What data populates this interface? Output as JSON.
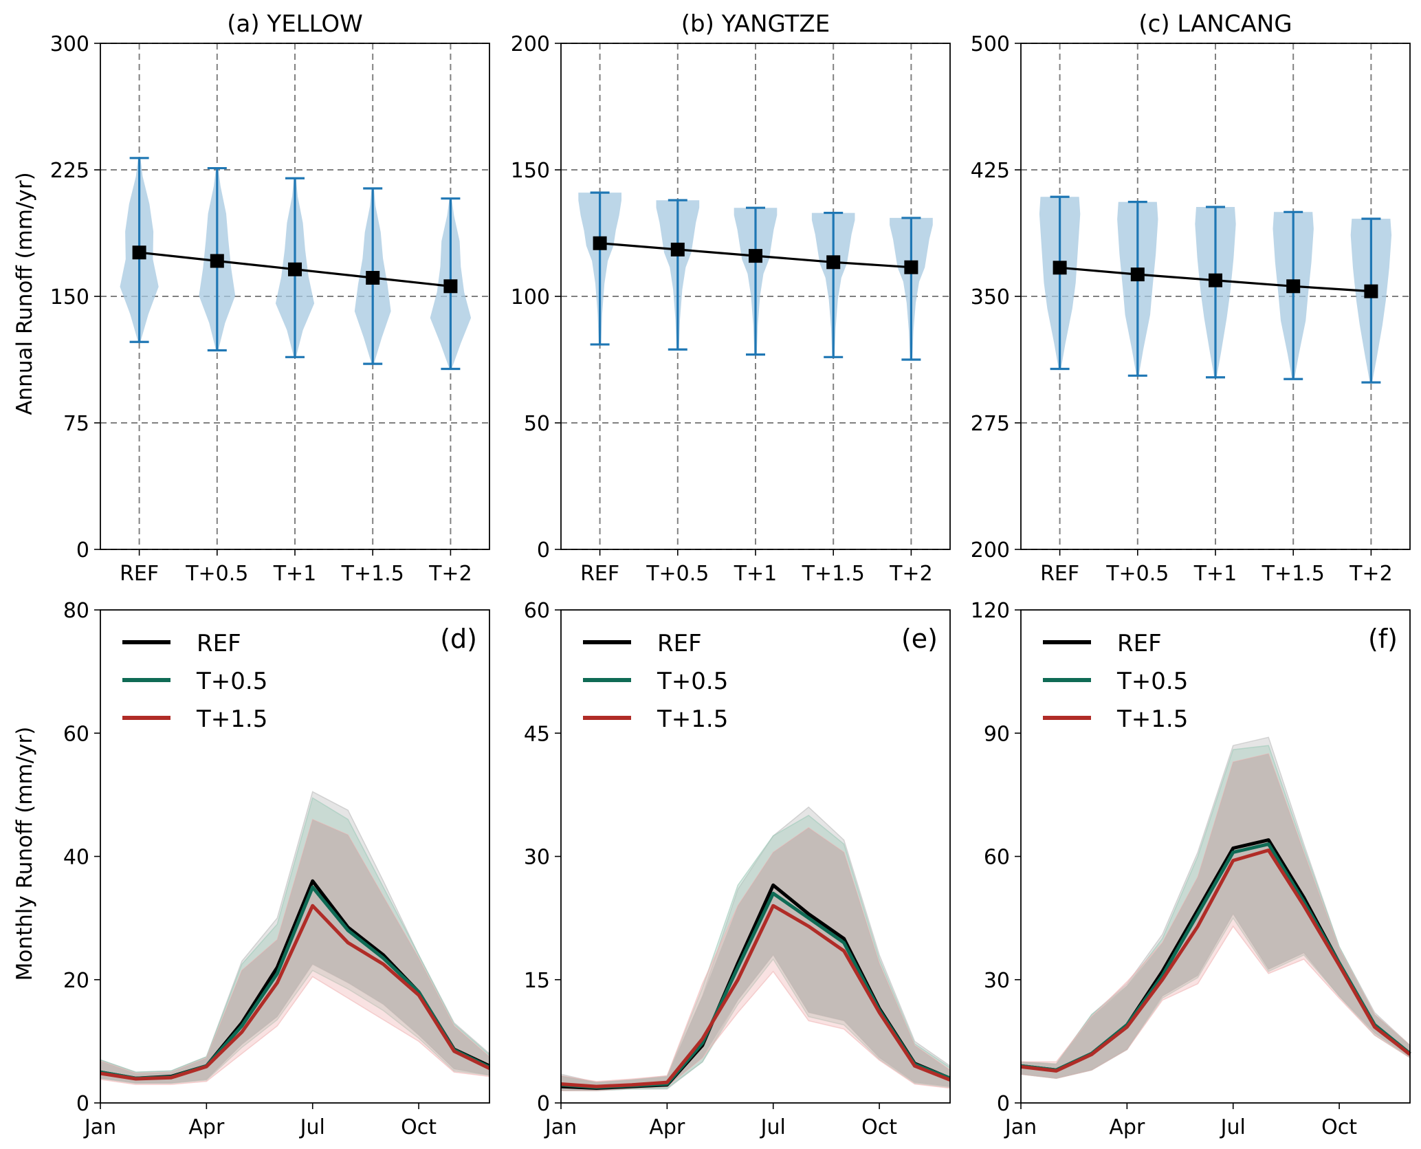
{
  "colors": {
    "violin_fill": "#a6c8e0",
    "violin_line": "#1f77b4",
    "mean_line": "#000000",
    "ref": "#000000",
    "t05": "#0f6b55",
    "t15": "#b02c27",
    "band_ref": "#bdbdbd",
    "band_t05": "#9fcab9",
    "band_t15": "#f0b6b6",
    "band_mix": "#b5aeab",
    "grid": "#808080"
  },
  "chart_data": [
    {
      "type": "violin",
      "title": "(a) YELLOW",
      "ylabel": "Annual Runoff (mm/yr)",
      "ylim": [
        0,
        300
      ],
      "yticks": [
        "0",
        "75",
        "150",
        "225",
        "300"
      ],
      "categories": [
        "REF",
        "T+0.5",
        "T+1",
        "T+1.5",
        "T+2"
      ],
      "means": [
        176,
        171,
        166,
        161,
        156
      ],
      "mins": [
        123,
        118,
        114,
        110,
        107
      ],
      "maxs": [
        232,
        226,
        220,
        214,
        208
      ],
      "widths": [
        [
          [
            0,
            0.05
          ],
          [
            0.15,
            0.4
          ],
          [
            0.3,
            0.85
          ],
          [
            0.45,
            0.6
          ],
          [
            0.6,
            0.62
          ],
          [
            0.75,
            0.45
          ],
          [
            0.9,
            0.15
          ],
          [
            1,
            0.05
          ]
        ],
        [
          [
            0,
            0.05
          ],
          [
            0.15,
            0.35
          ],
          [
            0.3,
            0.8
          ],
          [
            0.45,
            0.62
          ],
          [
            0.6,
            0.5
          ],
          [
            0.75,
            0.4
          ],
          [
            0.9,
            0.15
          ],
          [
            1,
            0.05
          ]
        ],
        [
          [
            0,
            0.05
          ],
          [
            0.15,
            0.35
          ],
          [
            0.3,
            0.85
          ],
          [
            0.45,
            0.6
          ],
          [
            0.6,
            0.45
          ],
          [
            0.75,
            0.35
          ],
          [
            0.9,
            0.12
          ],
          [
            1,
            0.05
          ]
        ],
        [
          [
            0,
            0.05
          ],
          [
            0.15,
            0.4
          ],
          [
            0.3,
            0.8
          ],
          [
            0.45,
            0.65
          ],
          [
            0.6,
            0.45
          ],
          [
            0.75,
            0.35
          ],
          [
            0.9,
            0.12
          ],
          [
            1,
            0.05
          ]
        ],
        [
          [
            0,
            0.05
          ],
          [
            0.15,
            0.45
          ],
          [
            0.3,
            0.9
          ],
          [
            0.45,
            0.6
          ],
          [
            0.6,
            0.45
          ],
          [
            0.75,
            0.4
          ],
          [
            0.9,
            0.15
          ],
          [
            1,
            0.05
          ]
        ]
      ]
    },
    {
      "type": "violin",
      "title": "(b) YANGTZE",
      "ylabel": "",
      "ylim": [
        0,
        200
      ],
      "yticks": [
        "0",
        "50",
        "100",
        "150",
        "200"
      ],
      "categories": [
        "REF",
        "T+0.5",
        "T+1",
        "T+1.5",
        "T+2"
      ],
      "means": [
        121,
        118.5,
        116,
        113.5,
        111.5
      ],
      "mins": [
        81,
        79,
        77,
        76,
        75
      ],
      "maxs": [
        141,
        138,
        135,
        133,
        131
      ],
      "widths": [
        [
          [
            0,
            0.05
          ],
          [
            0.2,
            0.1
          ],
          [
            0.4,
            0.2
          ],
          [
            0.55,
            0.35
          ],
          [
            0.65,
            0.6
          ],
          [
            0.75,
            0.7
          ],
          [
            0.85,
            0.85
          ],
          [
            0.95,
            0.95
          ],
          [
            1,
            0.95
          ]
        ],
        [
          [
            0,
            0.05
          ],
          [
            0.2,
            0.1
          ],
          [
            0.4,
            0.2
          ],
          [
            0.55,
            0.35
          ],
          [
            0.65,
            0.6
          ],
          [
            0.75,
            0.7
          ],
          [
            0.85,
            0.8
          ],
          [
            0.95,
            0.95
          ],
          [
            1,
            0.95
          ]
        ],
        [
          [
            0,
            0.05
          ],
          [
            0.2,
            0.1
          ],
          [
            0.4,
            0.2
          ],
          [
            0.55,
            0.35
          ],
          [
            0.65,
            0.6
          ],
          [
            0.75,
            0.7
          ],
          [
            0.85,
            0.8
          ],
          [
            0.95,
            0.95
          ],
          [
            1,
            0.95
          ]
        ],
        [
          [
            0,
            0.05
          ],
          [
            0.2,
            0.1
          ],
          [
            0.4,
            0.2
          ],
          [
            0.55,
            0.35
          ],
          [
            0.65,
            0.6
          ],
          [
            0.75,
            0.7
          ],
          [
            0.85,
            0.8
          ],
          [
            0.95,
            0.95
          ],
          [
            1,
            0.95
          ]
        ],
        [
          [
            0,
            0.05
          ],
          [
            0.2,
            0.1
          ],
          [
            0.4,
            0.2
          ],
          [
            0.55,
            0.35
          ],
          [
            0.65,
            0.6
          ],
          [
            0.75,
            0.7
          ],
          [
            0.85,
            0.8
          ],
          [
            0.95,
            0.95
          ],
          [
            1,
            0.95
          ]
        ]
      ]
    },
    {
      "type": "violin",
      "title": "(c) LANCANG",
      "ylabel": "",
      "ylim": [
        200,
        500
      ],
      "yticks": [
        "200",
        "275",
        "350",
        "425",
        "500"
      ],
      "categories": [
        "REF",
        "T+0.5",
        "T+1",
        "T+1.5",
        "T+2"
      ],
      "means": [
        367,
        363,
        359.5,
        356,
        353
      ],
      "mins": [
        307,
        303,
        302,
        301,
        299
      ],
      "maxs": [
        409,
        406,
        403,
        400,
        396
      ],
      "widths": [
        [
          [
            0,
            0.05
          ],
          [
            0.15,
            0.25
          ],
          [
            0.35,
            0.55
          ],
          [
            0.5,
            0.7
          ],
          [
            0.7,
            0.8
          ],
          [
            0.9,
            0.9
          ],
          [
            1,
            0.85
          ]
        ],
        [
          [
            0,
            0.05
          ],
          [
            0.15,
            0.25
          ],
          [
            0.35,
            0.55
          ],
          [
            0.5,
            0.65
          ],
          [
            0.7,
            0.8
          ],
          [
            0.9,
            0.9
          ],
          [
            1,
            0.85
          ]
        ],
        [
          [
            0,
            0.05
          ],
          [
            0.15,
            0.25
          ],
          [
            0.35,
            0.5
          ],
          [
            0.5,
            0.65
          ],
          [
            0.7,
            0.8
          ],
          [
            0.9,
            0.9
          ],
          [
            1,
            0.85
          ]
        ],
        [
          [
            0,
            0.05
          ],
          [
            0.15,
            0.25
          ],
          [
            0.35,
            0.55
          ],
          [
            0.5,
            0.65
          ],
          [
            0.7,
            0.8
          ],
          [
            0.9,
            0.9
          ],
          [
            1,
            0.85
          ]
        ],
        [
          [
            0,
            0.05
          ],
          [
            0.15,
            0.25
          ],
          [
            0.35,
            0.5
          ],
          [
            0.5,
            0.65
          ],
          [
            0.7,
            0.8
          ],
          [
            0.9,
            0.9
          ],
          [
            1,
            0.85
          ]
        ]
      ]
    },
    {
      "type": "line",
      "panel_label": "(d)",
      "ylabel": "Monthly Runoff (mm/yr)",
      "ylim": [
        0,
        80
      ],
      "yticks": [
        "0",
        "20",
        "40",
        "60",
        "80"
      ],
      "xlim": [
        1,
        12
      ],
      "xticks": [
        {
          "x": 1,
          "label": "Jan"
        },
        {
          "x": 4,
          "label": "Apr"
        },
        {
          "x": 7,
          "label": "Jul"
        },
        {
          "x": 10,
          "label": "Oct"
        }
      ],
      "legend": [
        "REF",
        "T+0.5",
        "T+1.5"
      ],
      "series": [
        {
          "name": "REF",
          "key": "ref",
          "values": [
            5,
            4,
            4.3,
            6,
            13,
            22,
            36,
            28.5,
            24,
            18,
            8.7,
            6
          ],
          "lower": [
            4,
            3.2,
            3.2,
            3.8,
            9.5,
            14,
            22.5,
            19.5,
            16,
            11,
            5.5,
            4.5
          ],
          "upper": [
            7,
            5,
            5.2,
            7.5,
            23,
            30,
            50.5,
            47.5,
            36,
            24,
            13,
            8
          ]
        },
        {
          "name": "T+0.5",
          "key": "t05",
          "values": [
            5,
            4,
            4.2,
            6,
            12.5,
            21,
            35,
            28,
            23.5,
            18,
            8.6,
            5.8
          ],
          "lower": [
            4,
            3.2,
            3.2,
            3.7,
            9,
            13.5,
            21.5,
            18.5,
            15,
            10.5,
            5.2,
            4.5
          ],
          "upper": [
            7,
            5,
            5.2,
            7.5,
            22.5,
            29,
            49.5,
            46,
            35,
            24,
            12.8,
            7.8
          ]
        },
        {
          "name": "T+1.5",
          "key": "t15",
          "values": [
            4.8,
            3.9,
            4.1,
            5.9,
            11.5,
            19.5,
            32,
            26,
            22.5,
            17.5,
            8.4,
            5.6
          ],
          "lower": [
            3.8,
            3,
            3,
            3.5,
            8,
            12.5,
            20.5,
            17,
            13.5,
            10,
            5,
            4.3
          ],
          "upper": [
            6.8,
            4.8,
            5,
            7.3,
            21.5,
            26.5,
            46,
            43.5,
            33.5,
            23.5,
            12.5,
            7.5
          ]
        }
      ]
    },
    {
      "type": "line",
      "panel_label": "(e)",
      "ylabel": "",
      "ylim": [
        0,
        60
      ],
      "yticks": [
        "0",
        "15",
        "30",
        "45",
        "60"
      ],
      "xlim": [
        1,
        12
      ],
      "xticks": [
        {
          "x": 1,
          "label": "Jan"
        },
        {
          "x": 4,
          "label": "Apr"
        },
        {
          "x": 7,
          "label": "Jul"
        },
        {
          "x": 10,
          "label": "Oct"
        }
      ],
      "legend": [
        "REF",
        "T+0.5",
        "T+1.5"
      ],
      "series": [
        {
          "name": "REF",
          "key": "ref",
          "values": [
            2,
            1.8,
            2,
            2.2,
            7,
            17,
            26.5,
            23,
            20,
            11.5,
            4.8,
            3
          ],
          "lower": [
            1.5,
            1.5,
            1.7,
            1.7,
            5,
            12.5,
            18,
            11,
            10,
            5.5,
            2.5,
            2
          ],
          "upper": [
            3.5,
            2.5,
            2.8,
            3.3,
            13,
            26,
            32.5,
            36,
            32,
            18,
            7.5,
            4.5
          ]
        },
        {
          "name": "T+0.5",
          "key": "t05",
          "values": [
            2.2,
            1.9,
            2.1,
            2.3,
            7.3,
            16.5,
            25.5,
            22.5,
            19.5,
            11.3,
            4.7,
            3
          ],
          "lower": [
            1.5,
            1.5,
            1.7,
            1.8,
            5,
            12,
            17.5,
            10.5,
            9.5,
            5.3,
            2.4,
            1.9
          ],
          "upper": [
            3.3,
            2.5,
            2.8,
            3.2,
            14,
            26.5,
            32.5,
            35,
            31.5,
            17.5,
            7.2,
            4.3
          ]
        },
        {
          "name": "T+1.5",
          "key": "t15",
          "values": [
            2.3,
            2,
            2.2,
            2.5,
            7.8,
            15,
            24,
            21.5,
            18.5,
            11,
            4.5,
            2.8
          ],
          "lower": [
            1.5,
            1.5,
            1.8,
            2,
            5.5,
            11,
            16,
            10,
            9,
            5.2,
            2.3,
            1.8
          ],
          "upper": [
            3.3,
            2.6,
            2.9,
            3.3,
            14.5,
            24,
            30.5,
            33.5,
            30.5,
            17,
            7,
            4
          ]
        }
      ]
    },
    {
      "type": "line",
      "panel_label": "(f)",
      "ylabel": "",
      "ylim": [
        0,
        120
      ],
      "yticks": [
        "0",
        "30",
        "60",
        "90",
        "120"
      ],
      "xlim": [
        1,
        12
      ],
      "xticks": [
        {
          "x": 1,
          "label": "Jan"
        },
        {
          "x": 4,
          "label": "Apr"
        },
        {
          "x": 7,
          "label": "Jul"
        },
        {
          "x": 10,
          "label": "Oct"
        }
      ],
      "legend": [
        "REF",
        "T+0.5",
        "T+1.5"
      ],
      "series": [
        {
          "name": "REF",
          "key": "ref",
          "values": [
            9,
            8,
            12,
            19,
            32,
            47,
            62,
            64,
            50,
            34,
            19,
            12
          ],
          "lower": [
            7,
            6,
            8,
            13,
            26,
            31,
            46,
            32.5,
            36.5,
            26,
            17,
            11
          ],
          "upper": [
            10,
            9.5,
            21.5,
            29,
            41,
            61,
            87,
            89,
            63,
            38,
            22,
            14
          ]
        },
        {
          "name": "T+0.5",
          "key": "t05",
          "values": [
            9,
            8,
            12,
            19,
            31,
            46,
            61,
            63,
            49,
            34,
            19,
            12
          ],
          "lower": [
            7,
            6,
            8,
            13,
            25.5,
            30.5,
            45,
            32,
            36,
            26,
            16.5,
            11
          ],
          "upper": [
            10,
            9.5,
            21.5,
            28.5,
            40,
            60,
            86,
            87,
            62,
            38,
            21.5,
            14
          ]
        },
        {
          "name": "T+1.5",
          "key": "t15",
          "values": [
            8.8,
            7.8,
            11.8,
            18.5,
            30,
            43,
            59,
            61.5,
            48,
            33.5,
            18.5,
            11.8
          ],
          "lower": [
            7,
            6,
            8,
            13,
            25,
            29,
            43,
            31.5,
            35,
            25.5,
            16.5,
            11
          ],
          "upper": [
            10,
            10,
            21,
            29.5,
            39,
            55,
            83,
            85,
            61,
            37.5,
            21.5,
            14
          ]
        }
      ]
    }
  ]
}
